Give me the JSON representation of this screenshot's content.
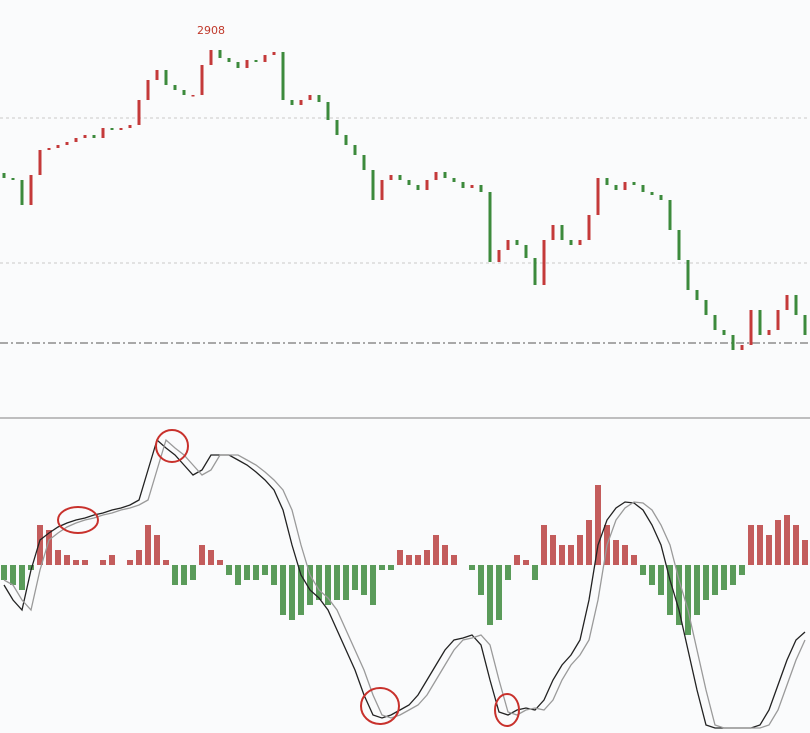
{
  "chart_data": [
    {
      "type": "candlestick",
      "ylim": [
        2533,
        2948
      ],
      "up_color": "#c43a3a",
      "down_color": "#3c8a3c",
      "high_label": 2908,
      "grid_levels": [
        2830,
        2685
      ],
      "reference_level": 2605,
      "open": [
        2775,
        2770,
        2768,
        2743,
        2773,
        2798,
        2800,
        2803,
        2806,
        2810,
        2813,
        2810,
        2820,
        2818,
        2820,
        2823,
        2848,
        2868,
        2878,
        2863,
        2858,
        2853,
        2853,
        2883,
        2898,
        2890,
        2886,
        2880,
        2888,
        2886,
        2893,
        2896,
        2848,
        2843,
        2848,
        2853,
        2846,
        2828,
        2813,
        2803,
        2793,
        2778,
        2748,
        2768,
        2773,
        2768,
        2763,
        2758,
        2768,
        2776,
        2770,
        2766,
        2760,
        2763,
        2756,
        2686,
        2698,
        2708,
        2703,
        2690,
        2663,
        2708,
        2723,
        2708,
        2703,
        2708,
        2733,
        2770,
        2763,
        2758,
        2766,
        2763,
        2756,
        2753,
        2748,
        2718,
        2688,
        2658,
        2648,
        2633,
        2618,
        2613,
        2598,
        2603,
        2638,
        2613,
        2618,
        2638,
        2653,
        2633
      ],
      "close": [
        2770,
        2768,
        2743,
        2773,
        2798,
        2800,
        2803,
        2806,
        2810,
        2813,
        2810,
        2820,
        2818,
        2820,
        2823,
        2848,
        2868,
        2878,
        2863,
        2858,
        2853,
        2853,
        2883,
        2898,
        2890,
        2886,
        2880,
        2888,
        2886,
        2893,
        2896,
        2848,
        2843,
        2848,
        2853,
        2846,
        2828,
        2813,
        2803,
        2793,
        2778,
        2748,
        2768,
        2773,
        2768,
        2763,
        2758,
        2768,
        2776,
        2770,
        2766,
        2760,
        2763,
        2756,
        2686,
        2698,
        2708,
        2703,
        2690,
        2663,
        2708,
        2723,
        2708,
        2703,
        2708,
        2733,
        2770,
        2763,
        2758,
        2766,
        2763,
        2756,
        2753,
        2748,
        2718,
        2688,
        2658,
        2648,
        2633,
        2618,
        2613,
        2598,
        2603,
        2638,
        2613,
        2618,
        2638,
        2653,
        2633,
        2613
      ]
    },
    {
      "type": "macd",
      "ylim": [
        -168,
        145
      ],
      "up_color": "#b84040",
      "down_color": "#3d8a3d",
      "histogram": [
        -15,
        -20,
        -25,
        -5,
        40,
        35,
        15,
        10,
        5,
        5,
        0,
        5,
        10,
        0,
        5,
        15,
        40,
        30,
        5,
        -20,
        -20,
        -15,
        20,
        15,
        5,
        -10,
        -20,
        -15,
        -15,
        -10,
        -20,
        -50,
        -55,
        -50,
        -40,
        -35,
        -40,
        -35,
        -35,
        -25,
        -30,
        -40,
        -5,
        -5,
        15,
        10,
        10,
        15,
        30,
        20,
        10,
        0,
        -5,
        -30,
        -60,
        -55,
        -15,
        10,
        5,
        -15,
        40,
        30,
        20,
        20,
        30,
        45,
        80,
        40,
        25,
        20,
        10,
        -10,
        -20,
        -30,
        -50,
        -60,
        -70,
        -50,
        -35,
        -30,
        -25,
        -20,
        -10,
        40,
        40,
        30,
        45,
        50,
        40,
        25
      ],
      "lines": [
        {
          "color": "#222222",
          "values": [
            -20,
            -35,
            -45,
            -5,
            25,
            32,
            38,
            42,
            45,
            47,
            50,
            52,
            55,
            57,
            60,
            65,
            95,
            125,
            117,
            110,
            100,
            90,
            95,
            110,
            110,
            110,
            105,
            100,
            93,
            85,
            75,
            55,
            20,
            -10,
            -25,
            -33,
            -45,
            -65,
            -85,
            -105,
            -130,
            -150,
            -153,
            -150,
            -145,
            -140,
            -130,
            -115,
            -100,
            -85,
            -75,
            -73,
            -70,
            -80,
            -115,
            -147,
            -150,
            -145,
            -143,
            -145,
            -135,
            -115,
            -100,
            -90,
            -75,
            -35,
            20,
            45,
            57,
            63,
            62,
            55,
            40,
            20,
            -15,
            -45,
            -85,
            -125,
            -160,
            -163,
            -163,
            -163,
            -163,
            -163,
            -160,
            -145,
            -120,
            -95,
            -75,
            -67
          ]
        },
        {
          "color": "#9a9a9a",
          "values": [
            -15,
            -20,
            -35,
            -45,
            -5,
            25,
            32,
            38,
            42,
            45,
            47,
            50,
            52,
            55,
            57,
            60,
            65,
            95,
            125,
            117,
            110,
            100,
            90,
            95,
            110,
            110,
            110,
            105,
            100,
            93,
            85,
            75,
            55,
            20,
            -10,
            -25,
            -33,
            -45,
            -65,
            -85,
            -105,
            -130,
            -150,
            -153,
            -150,
            -145,
            -140,
            -130,
            -115,
            -100,
            -85,
            -75,
            -73,
            -70,
            -80,
            -115,
            -147,
            -150,
            -145,
            -143,
            -145,
            -135,
            -115,
            -100,
            -90,
            -75,
            -35,
            20,
            45,
            57,
            63,
            62,
            55,
            40,
            20,
            -15,
            -45,
            -85,
            -125,
            -160,
            -163,
            -163,
            -163,
            -163,
            -163,
            -160,
            -145,
            -120,
            -95,
            -75
          ]
        }
      ]
    }
  ]
}
